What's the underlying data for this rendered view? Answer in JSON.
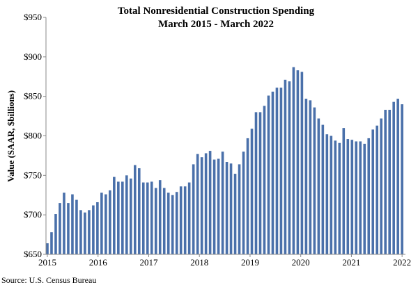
{
  "chart_data": {
    "type": "bar",
    "title": "Total Nonresidential Construction Spending",
    "subtitle": "March 2015 - March 2022",
    "ylabel": "Value (SAAR, $billions)",
    "xlabel": "",
    "ylim": [
      650,
      950
    ],
    "yticks": [
      "$650",
      "$700",
      "$750",
      "$800",
      "$850",
      "$900",
      "$950"
    ],
    "ytick_values": [
      650,
      700,
      750,
      800,
      850,
      900,
      950
    ],
    "xticks": [
      "2015",
      "2016",
      "2017",
      "2018",
      "2019",
      "2020",
      "2021",
      "2022"
    ],
    "grid": false,
    "legend": "none",
    "bar_color": "#4a70aa",
    "values": [
      664,
      678,
      701,
      715,
      728,
      715,
      726,
      719,
      706,
      703,
      706,
      712,
      716,
      728,
      726,
      731,
      748,
      742,
      742,
      750,
      746,
      763,
      759,
      741,
      741,
      742,
      734,
      744,
      734,
      728,
      725,
      729,
      736,
      736,
      741,
      764,
      777,
      773,
      778,
      781,
      770,
      771,
      780,
      767,
      765,
      752,
      764,
      780,
      797,
      809,
      830,
      830,
      838,
      851,
      856,
      861,
      861,
      871,
      869,
      887,
      883,
      881,
      847,
      845,
      836,
      822,
      814,
      802,
      800,
      794,
      791,
      810,
      796,
      795,
      793,
      793,
      790,
      797,
      808,
      813,
      822,
      833,
      833,
      843,
      847,
      840
    ]
  },
  "source": "Source:  U.S. Census Bureau"
}
